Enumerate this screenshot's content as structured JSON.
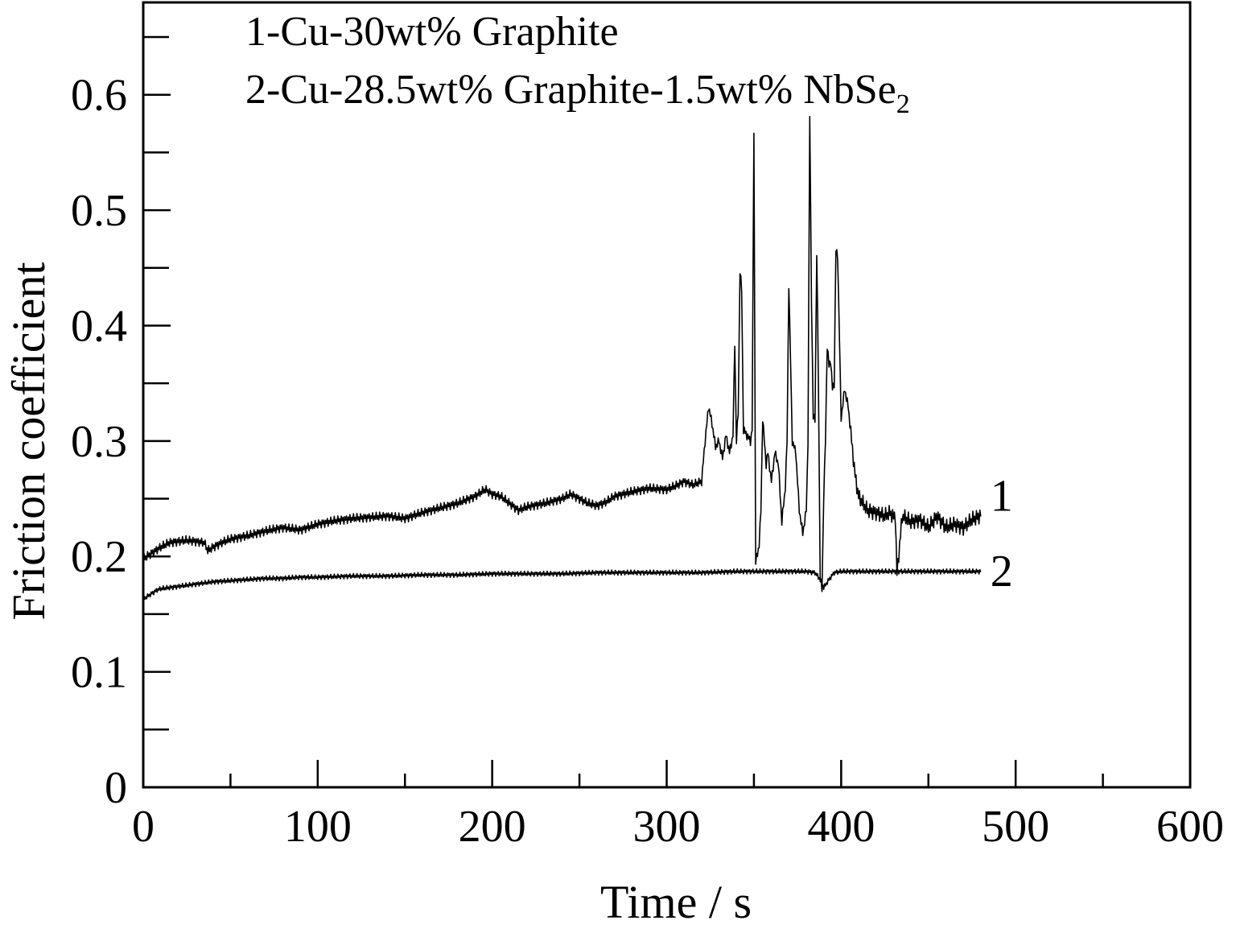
{
  "chart_data": {
    "type": "line",
    "title": "",
    "xlabel": "Time / s",
    "ylabel": "Friction coefficient",
    "xlim": [
      0,
      600
    ],
    "ylim": [
      0,
      0.68
    ],
    "x_ticks": [
      0,
      100,
      200,
      300,
      400,
      500,
      600
    ],
    "x_tick_labels": [
      "0",
      "100",
      "200",
      "300",
      "400",
      "500",
      "600"
    ],
    "x_minor_step": 50,
    "y_ticks": [
      0,
      0.1,
      0.2,
      0.3,
      0.4,
      0.5,
      0.6
    ],
    "y_tick_labels": [
      "0",
      "0.1",
      "0.2",
      "0.3",
      "0.4",
      "0.5",
      "0.6"
    ],
    "y_minor_step": 0.05,
    "grid": false,
    "legend_position": "top-left",
    "legend": [
      {
        "prefix": "1-Cu-30wt% Graphite",
        "sub": "",
        "suffix": ""
      },
      {
        "prefix": "2-Cu-28.5wt% Graphite-1.5wt% NbSe",
        "sub": "2",
        "suffix": ""
      }
    ],
    "series": [
      {
        "name": "1",
        "color": "#000000",
        "x": [
          0,
          5,
          10,
          15,
          20,
          25,
          30,
          35,
          37,
          40,
          45,
          50,
          60,
          70,
          80,
          90,
          100,
          110,
          120,
          130,
          140,
          150,
          160,
          170,
          180,
          190,
          196,
          200,
          205,
          210,
          215,
          220,
          230,
          240,
          245,
          250,
          255,
          260,
          265,
          270,
          280,
          290,
          300,
          305,
          310,
          315,
          320,
          322,
          324,
          326,
          328,
          330,
          332,
          334,
          336,
          338,
          339,
          340,
          341,
          342,
          343,
          344,
          346,
          348,
          349,
          350,
          351,
          353,
          354,
          355,
          356,
          357,
          358,
          360,
          362,
          364,
          366,
          368,
          369,
          370,
          372,
          374,
          376,
          378,
          380,
          381,
          382,
          383,
          384,
          385,
          386,
          387,
          388,
          389,
          390,
          391,
          392,
          393,
          394,
          395,
          396,
          397,
          398,
          400,
          402,
          404,
          406,
          408,
          410,
          415,
          420,
          425,
          428,
          430,
          431,
          432,
          435,
          440,
          445,
          450,
          455,
          460,
          465,
          470,
          475,
          478,
          480
        ],
        "y": [
          0.198,
          0.203,
          0.208,
          0.212,
          0.213,
          0.214,
          0.213,
          0.212,
          0.205,
          0.208,
          0.212,
          0.215,
          0.218,
          0.222,
          0.225,
          0.223,
          0.228,
          0.231,
          0.233,
          0.234,
          0.235,
          0.233,
          0.238,
          0.242,
          0.246,
          0.252,
          0.258,
          0.254,
          0.252,
          0.246,
          0.24,
          0.243,
          0.246,
          0.25,
          0.254,
          0.25,
          0.246,
          0.244,
          0.247,
          0.252,
          0.256,
          0.259,
          0.258,
          0.261,
          0.265,
          0.262,
          0.265,
          0.3,
          0.33,
          0.315,
          0.295,
          0.3,
          0.285,
          0.305,
          0.29,
          0.305,
          0.385,
          0.3,
          0.325,
          0.448,
          0.43,
          0.31,
          0.305,
          0.3,
          0.31,
          0.57,
          0.195,
          0.21,
          0.24,
          0.32,
          0.3,
          0.28,
          0.29,
          0.265,
          0.29,
          0.28,
          0.23,
          0.26,
          0.3,
          0.436,
          0.3,
          0.29,
          0.24,
          0.22,
          0.24,
          0.3,
          0.582,
          0.42,
          0.32,
          0.32,
          0.462,
          0.35,
          0.18,
          0.172,
          0.25,
          0.3,
          0.383,
          0.365,
          0.37,
          0.345,
          0.35,
          0.465,
          0.46,
          0.32,
          0.345,
          0.33,
          0.3,
          0.27,
          0.252,
          0.24,
          0.238,
          0.235,
          0.238,
          0.234,
          0.236,
          0.185,
          0.235,
          0.23,
          0.232,
          0.225,
          0.235,
          0.225,
          0.228,
          0.225,
          0.232,
          0.234,
          0.236
        ]
      },
      {
        "name": "2",
        "color": "#000000",
        "x": [
          0,
          2,
          5,
          8,
          10,
          15,
          20,
          25,
          30,
          40,
          50,
          60,
          70,
          80,
          90,
          100,
          120,
          140,
          160,
          180,
          200,
          220,
          240,
          260,
          280,
          300,
          320,
          340,
          350,
          360,
          370,
          380,
          385,
          388,
          390,
          393,
          396,
          400,
          410,
          420,
          430,
          440,
          450,
          460,
          470,
          480
        ],
        "y": [
          0.163,
          0.165,
          0.168,
          0.171,
          0.172,
          0.173,
          0.174,
          0.175,
          0.176,
          0.178,
          0.179,
          0.18,
          0.181,
          0.181,
          0.182,
          0.182,
          0.183,
          0.183,
          0.184,
          0.184,
          0.185,
          0.185,
          0.185,
          0.186,
          0.186,
          0.186,
          0.186,
          0.187,
          0.187,
          0.187,
          0.187,
          0.187,
          0.186,
          0.18,
          0.173,
          0.18,
          0.186,
          0.187,
          0.187,
          0.187,
          0.187,
          0.187,
          0.187,
          0.187,
          0.187,
          0.187
        ]
      }
    ]
  }
}
